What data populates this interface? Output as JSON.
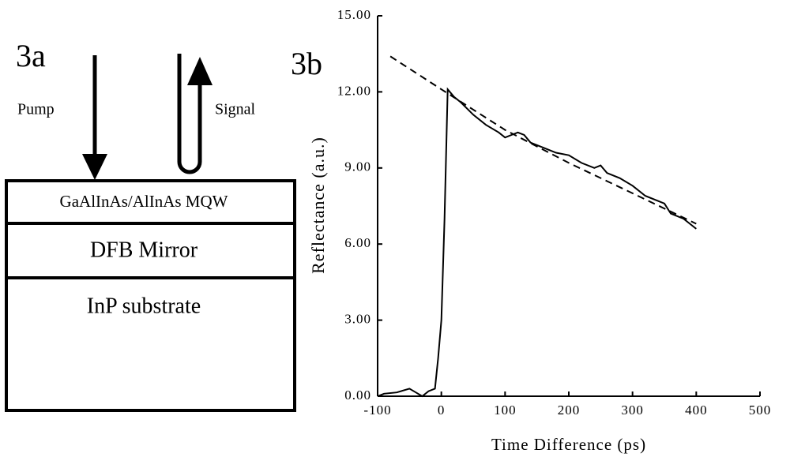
{
  "diagram": {
    "panel_label": "3a",
    "pump_label": "Pump",
    "signal_label": "Signal",
    "layers": [
      "GaAlInAs/AlInAs MQW",
      "DFB Mirror",
      "InP substrate"
    ]
  },
  "chart_data": {
    "type": "line",
    "panel_label": "3b",
    "x_label": "Time Difference (ps)",
    "y_label": "Reflectance (a.u.)",
    "xlim": [
      -100,
      500
    ],
    "xticks": [
      -100,
      0,
      100,
      200,
      300,
      400,
      500
    ],
    "ylim": [
      0,
      15
    ],
    "yticks": [
      {
        "value": 0,
        "label": "0.00"
      },
      {
        "value": 3,
        "label": "3.00"
      },
      {
        "value": 6,
        "label": "6.00"
      },
      {
        "value": 9,
        "label": "9.00"
      },
      {
        "value": 12,
        "label": "12.00"
      },
      {
        "value": 15,
        "label": "15.00"
      }
    ],
    "series": [
      {
        "color": "#000000",
        "dashed": false,
        "x": [
          -100,
          -90,
          -70,
          -50,
          -40,
          -30,
          -20,
          -10,
          -5,
          0,
          5,
          10,
          20,
          30,
          50,
          70,
          90,
          100,
          110,
          120,
          130,
          140,
          160,
          180,
          200,
          220,
          240,
          250,
          260,
          280,
          300,
          320,
          340,
          350,
          360,
          380,
          400
        ],
        "values": [
          0,
          0.1,
          0.15,
          0.3,
          0.15,
          0,
          0.2,
          0.3,
          1.5,
          3,
          7,
          12.1,
          11.8,
          11.6,
          11.1,
          10.7,
          10.4,
          10.2,
          10.3,
          10.4,
          10.3,
          10,
          9.8,
          9.6,
          9.5,
          9.2,
          9,
          9.1,
          8.8,
          8.6,
          8.3,
          7.9,
          7.7,
          7.6,
          7.2,
          7,
          6.6
        ]
      },
      {
        "color": "#000000",
        "dashed": true,
        "x": [
          -80,
          0,
          100,
          200,
          300,
          400
        ],
        "values": [
          13.4,
          12.1,
          10.5,
          9.2,
          8,
          6.8
        ]
      }
    ]
  }
}
